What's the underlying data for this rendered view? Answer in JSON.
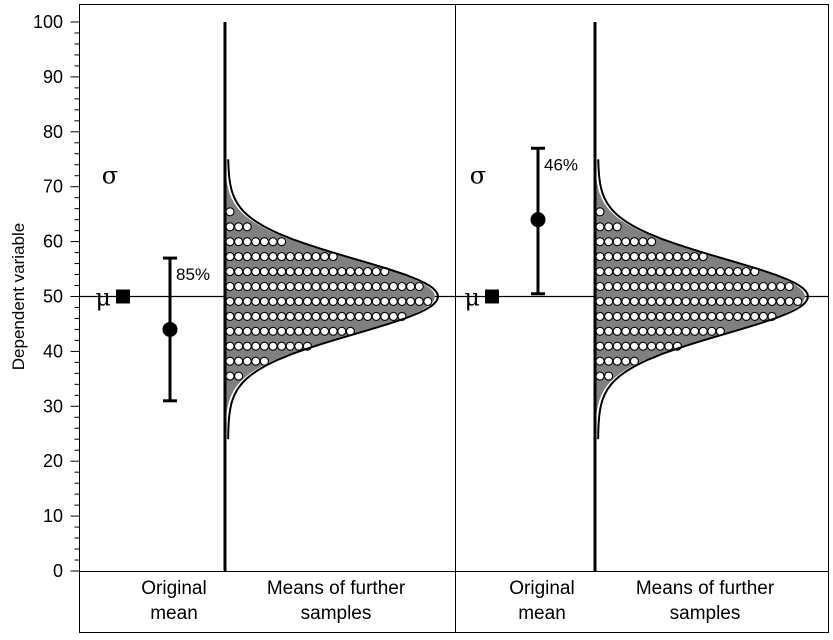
{
  "chart_data": {
    "type": "scatter",
    "ylabel": "Dependent variable",
    "ylim": [
      0,
      100
    ],
    "yticks": [
      "0",
      "10",
      "20",
      "30",
      "40",
      "50",
      "60",
      "70",
      "80",
      "90",
      "100"
    ],
    "population_mean": 50,
    "colors": {
      "ink": "#000000",
      "fill": "#ffffff",
      "shade": "#808080"
    },
    "panels": [
      {
        "sigma_label": "σ",
        "mu_label": "μ",
        "original_mean": 44,
        "ci": [
          31,
          57
        ],
        "ci_label": "85%",
        "category_labels": [
          "Original\nmean",
          "Means of further\nsamples"
        ]
      },
      {
        "sigma_label": "σ",
        "mu_label": "μ",
        "original_mean": 64,
        "ci": [
          50.5,
          77
        ],
        "ci_label": "46%",
        "category_labels": [
          "Original\nmean",
          "Means of further\nsamples"
        ]
      }
    ],
    "further_sample_means": {
      "shown_as": "dot histogram of sample means with normal curve overlay",
      "range": [
        35,
        70
      ],
      "peak": 50
    }
  }
}
